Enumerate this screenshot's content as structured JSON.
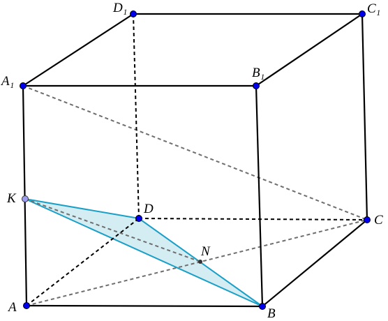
{
  "nodes": [
    {
      "label": "D₁"
    },
    {
      "label": "C₁"
    },
    {
      "label": "A₁"
    },
    {
      "label": "B₁"
    },
    {
      "label": "K"
    },
    {
      "label": "D"
    },
    {
      "label": "C"
    },
    {
      "label": "N"
    },
    {
      "label": "A"
    },
    {
      "label": "B"
    }
  ]
}
